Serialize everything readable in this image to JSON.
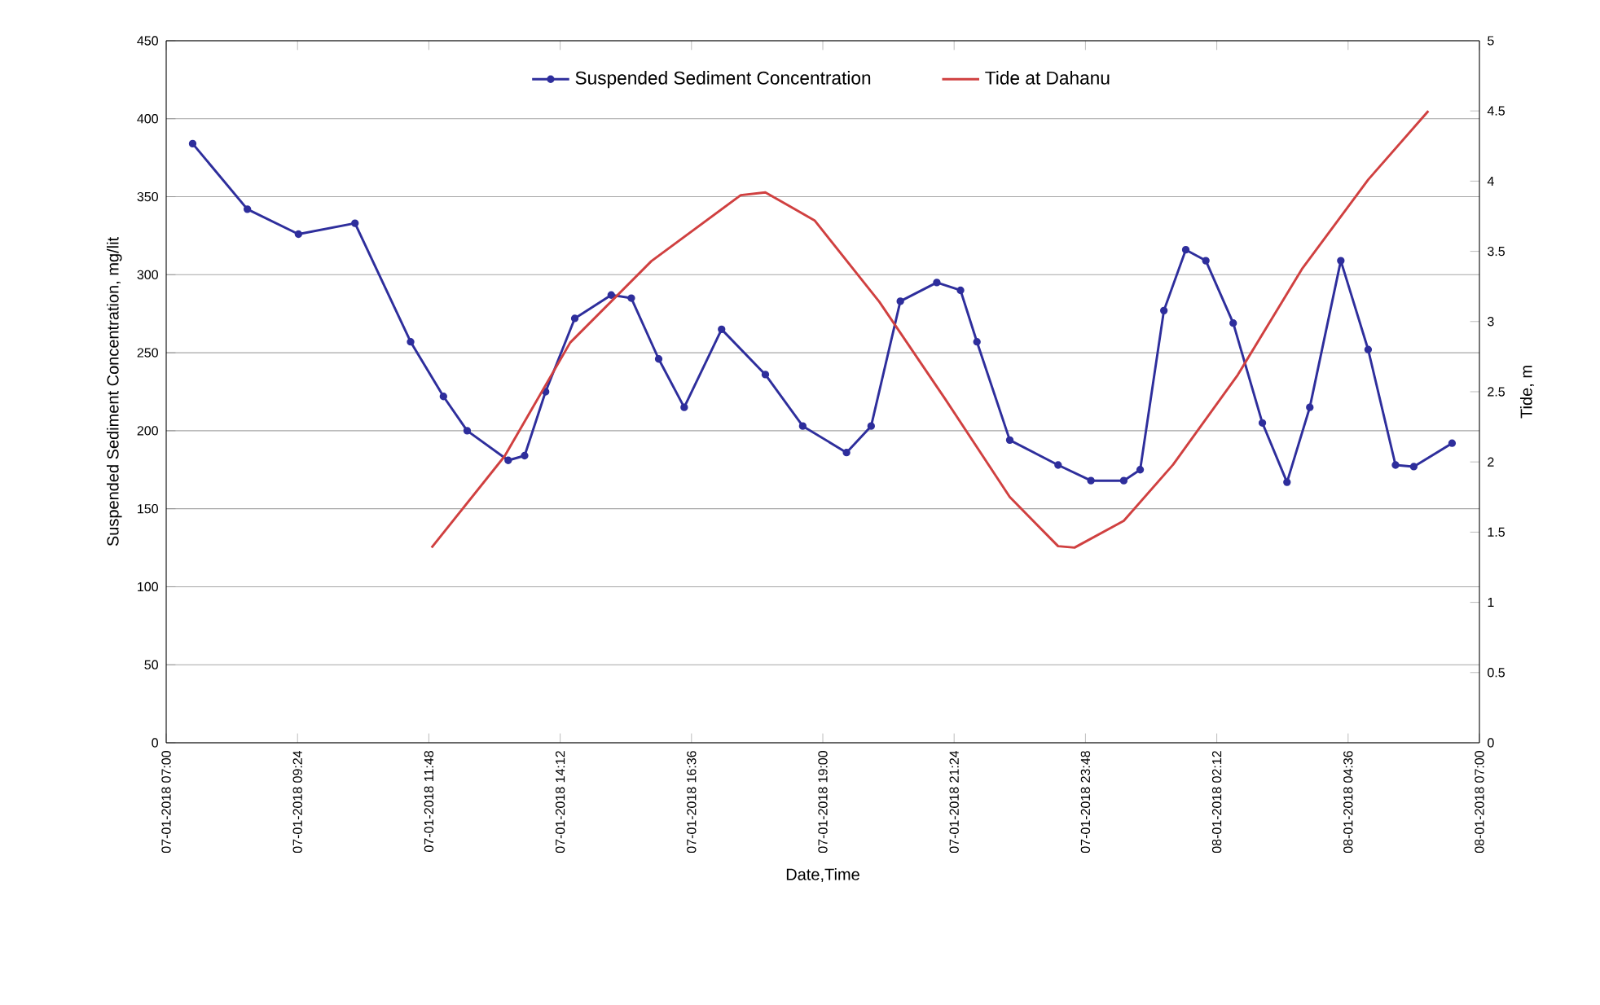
{
  "chart_data": {
    "type": "line",
    "xlabel": "Date,Time",
    "ylabel": "Suspended Sediment Concentration, mg/lit",
    "y2label": "Tide, m",
    "xlim": [
      "2018-01-07T07:00",
      "2018-01-08T07:00"
    ],
    "xticks": [
      {
        "value": "2018-01-07T07:00",
        "label": "07-01-2018 07:00"
      },
      {
        "value": "2018-01-07T09:24",
        "label": "07-01-2018 09:24"
      },
      {
        "value": "2018-01-07T11:48",
        "label": "07-01-2018 11:48"
      },
      {
        "value": "2018-01-07T14:12",
        "label": "07-01-2018 14:12"
      },
      {
        "value": "2018-01-07T16:36",
        "label": "07-01-2018 16:36"
      },
      {
        "value": "2018-01-07T19:00",
        "label": "07-01-2018 19:00"
      },
      {
        "value": "2018-01-07T21:24",
        "label": "07-01-2018 21:24"
      },
      {
        "value": "2018-01-07T23:48",
        "label": "07-01-2018 23:48"
      },
      {
        "value": "2018-01-08T02:12",
        "label": "08-01-2018 02:12"
      },
      {
        "value": "2018-01-08T04:36",
        "label": "08-01-2018 04:36"
      },
      {
        "value": "2018-01-08T07:00",
        "label": "08-01-2018 07:00"
      }
    ],
    "ylim": [
      0,
      450
    ],
    "yticks": [
      0,
      50,
      100,
      150,
      200,
      250,
      300,
      350,
      400,
      450
    ],
    "y2lim": [
      0,
      5
    ],
    "y2ticks": [
      0,
      0.5,
      1,
      1.5,
      2,
      2.5,
      3,
      3.5,
      4,
      4.5,
      5
    ],
    "grid": "y",
    "legend": "top",
    "series": [
      {
        "name": "Suspended Sediment Concentration",
        "color": "#2e2e9c",
        "marker": "circle",
        "x": [
          "2018-01-07T07:29",
          "2018-01-07T08:29",
          "2018-01-07T09:25",
          "2018-01-07T10:27",
          "2018-01-07T11:28",
          "2018-01-07T12:04",
          "2018-01-07T12:30",
          "2018-01-07T13:15",
          "2018-01-07T13:33",
          "2018-01-07T13:56",
          "2018-01-07T14:28",
          "2018-01-07T15:08",
          "2018-01-07T15:30",
          "2018-01-07T16:00",
          "2018-01-07T16:28",
          "2018-01-07T17:09",
          "2018-01-07T17:57",
          "2018-01-07T18:38",
          "2018-01-07T19:26",
          "2018-01-07T19:53",
          "2018-01-07T20:25",
          "2018-01-07T21:05",
          "2018-01-07T21:31",
          "2018-01-07T21:49",
          "2018-01-07T22:25",
          "2018-01-07T23:18",
          "2018-01-07T23:54",
          "2018-01-08T00:30",
          "2018-01-08T00:48",
          "2018-01-08T01:14",
          "2018-01-08T01:38",
          "2018-01-08T02:00",
          "2018-01-08T02:30",
          "2018-01-08T03:02",
          "2018-01-08T03:29",
          "2018-01-08T03:54",
          "2018-01-08T04:28",
          "2018-01-08T04:58",
          "2018-01-08T05:28",
          "2018-01-08T05:48",
          "2018-01-08T06:30"
        ],
        "values": [
          384,
          342,
          326,
          333,
          257,
          222,
          200,
          181,
          184,
          225,
          272,
          287,
          285,
          246,
          215,
          265,
          236,
          203,
          186,
          203,
          283,
          295,
          290,
          257,
          194,
          178,
          168,
          168,
          175,
          277,
          316,
          309,
          269,
          205,
          167,
          215,
          309,
          252,
          178,
          177,
          192
        ]
      },
      {
        "name": "Tide at Dahanu",
        "color": "#d04040",
        "marker": "none",
        "axis": "y2",
        "x": [
          "2018-01-07T11:51",
          "2018-01-07T13:11",
          "2018-01-07T14:23",
          "2018-01-07T15:52",
          "2018-01-07T17:30",
          "2018-01-07T17:57",
          "2018-01-07T18:51",
          "2018-01-07T20:02",
          "2018-01-07T21:14",
          "2018-01-07T22:25",
          "2018-01-07T23:18",
          "2018-01-07T23:36",
          "2018-01-08T00:30",
          "2018-01-08T01:24",
          "2018-01-08T02:35",
          "2018-01-08T03:46",
          "2018-01-08T04:58",
          "2018-01-08T06:04"
        ],
        "values": [
          1.39,
          2.04,
          2.85,
          3.43,
          3.9,
          3.92,
          3.72,
          3.14,
          2.45,
          1.75,
          1.4,
          1.39,
          1.58,
          1.98,
          2.62,
          3.38,
          4.01,
          4.5
        ]
      }
    ]
  }
}
